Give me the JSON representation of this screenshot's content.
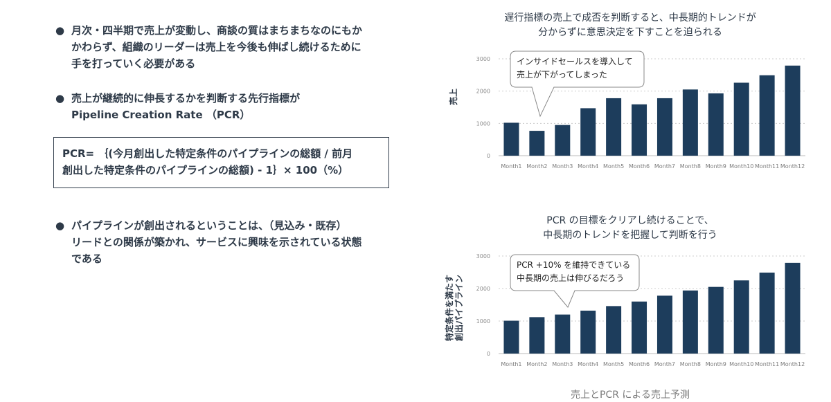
{
  "bullets": [
    {
      "marker": "●",
      "text": "月次・四半期で売上が変動し、商談の質はまちまちなのにもか\nかわらず、組織のリーダーは売上を今後も伸ばし続けるために\n手を打っていく必要がある"
    },
    {
      "marker": "●",
      "text": "売上が継続的に伸長するかを判断する先行指標が\nPipeline Creation Rate （PCR）"
    },
    {
      "marker": "●",
      "text": "パイプラインが創出されるということは、（見込み・既存）\nリードとの関係が築かれ、サービスに興味を示されている状態\nである"
    }
  ],
  "formula": "PCR= ｛(今月創出した特定条件のパイプラインの総額 / 前月\n創出した特定条件のパイプラインの総額) - 1｝× 100（%）",
  "caption": "売上とPCR による売上予測",
  "colors": {
    "bar": "#1d3d5c",
    "grid": "#cccccc",
    "text": "#2e3a48"
  },
  "chart_data": [
    {
      "type": "bar",
      "title": "遅行指標の売上で成否を判断すると、中長期的トレンドが\n分からずに意思決定を下すことを迫られる",
      "ylabel": "売上",
      "xlabel": "",
      "categories": [
        "Month1",
        "Month2",
        "Month3",
        "Month4",
        "Month5",
        "Month6",
        "Month7",
        "Month8",
        "Month9",
        "Month10",
        "Month11",
        "Month12"
      ],
      "values": [
        1020,
        770,
        950,
        1470,
        1780,
        1590,
        1780,
        2050,
        1930,
        2260,
        2490,
        2790
      ],
      "ylim": [
        0,
        3000
      ],
      "yticks": [
        0,
        1000,
        2000,
        3000
      ],
      "grid": true,
      "annotation": {
        "text": [
          "インサイドセールスを導入して",
          "売上が下がってしまった"
        ],
        "pointer_category": "Month2"
      }
    },
    {
      "type": "bar",
      "title": "PCR の目標をクリアし続けることで、\n中長期のトレンドを把握して判断を行う",
      "ylabel": [
        "特定条件を満たす",
        "創出パイプライン"
      ],
      "xlabel": "",
      "categories": [
        "Month1",
        "Month2",
        "Month3",
        "Month4",
        "Month5",
        "Month6",
        "Month7",
        "Month8",
        "Month9",
        "Month10",
        "Month11",
        "Month12"
      ],
      "values": [
        1010,
        1120,
        1200,
        1320,
        1460,
        1600,
        1780,
        1940,
        2050,
        2250,
        2490,
        2790
      ],
      "ylim": [
        0,
        3000
      ],
      "yticks": [
        0,
        1000,
        2000,
        3000
      ],
      "grid": true,
      "annotation": {
        "text": [
          "PCR +10% を維持できている",
          "中長期の売上は伸びるだろう"
        ],
        "pointer_category": "Month3"
      }
    }
  ]
}
